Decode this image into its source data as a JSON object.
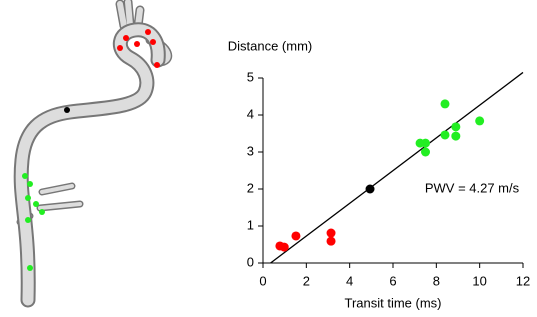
{
  "chart_data": {
    "type": "scatter",
    "xlabel": "Transit time (ms)",
    "ylabel": "Distance (mm)",
    "annotation": "PWV = 4.27 m/s",
    "xlim": [
      0,
      12
    ],
    "ylim": [
      0,
      5
    ],
    "xticks": [
      0,
      2,
      4,
      6,
      8,
      10,
      12
    ],
    "yticks": [
      0,
      1,
      2,
      3,
      4,
      5
    ],
    "grid": false,
    "series": [
      {
        "color": "#ff0000",
        "x": [
          0.78,
          0.98,
          1.52,
          3.14,
          3.14
        ],
        "y": [
          0.46,
          0.43,
          0.73,
          0.81,
          0.59
        ]
      },
      {
        "color": "#000000",
        "x": [
          4.94
        ],
        "y": [
          2.0
        ]
      },
      {
        "color": "#22ee22",
        "x": [
          8.4,
          7.25,
          7.5,
          7.5,
          8.4,
          8.9,
          8.9,
          10.0
        ],
        "y": [
          4.3,
          3.24,
          3.24,
          3.0,
          3.46,
          3.68,
          3.43,
          3.84
        ]
      }
    ],
    "fit": {
      "color": "#000000",
      "x": [
        0.35,
        12
      ],
      "y": [
        0,
        5.15
      ]
    }
  }
}
